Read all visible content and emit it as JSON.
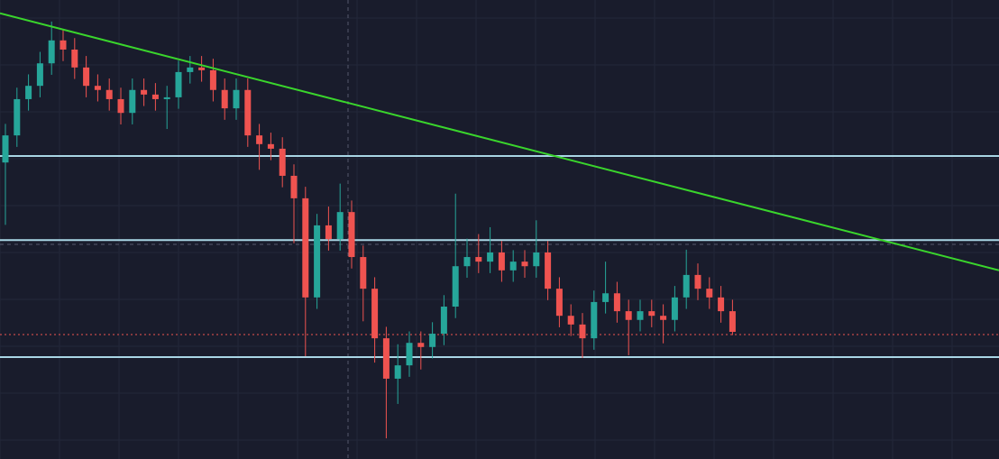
{
  "chart_data": {
    "type": "candlestick",
    "open": [
      64.6,
      70.5,
      78.4,
      81.3,
      86.2,
      91.2,
      89.2,
      85.3,
      81.3,
      80.4,
      78.4,
      75.4,
      80.4,
      79.4,
      78.4,
      78.8,
      84.3,
      85.3,
      84.7,
      80.4,
      76.4,
      80.4,
      70.5,
      68.6,
      67.6,
      61.7,
      56.8,
      35.2,
      50.9,
      47.9,
      53.8,
      44.0,
      37.1,
      26.3,
      17.5,
      20.4,
      25.3,
      24.4,
      27.3,
      33.2,
      42.0,
      44.0,
      43.0,
      45.0,
      41.1,
      43.0,
      42.0,
      45.0,
      37.1,
      31.2,
      29.3,
      26.3,
      34.2,
      36.1,
      32.2,
      30.3,
      32.2,
      31.2,
      30.3,
      35.2,
      40.1,
      37.1,
      35.2,
      32.2
    ],
    "high": [
      73.0,
      80.9,
      83.8,
      88.7,
      95.3,
      93.7,
      91.7,
      87.8,
      83.8,
      82.9,
      80.9,
      82.9,
      82.9,
      81.9,
      81.3,
      86.8,
      87.8,
      87.8,
      87.2,
      82.9,
      82.9,
      82.9,
      73.0,
      71.1,
      70.1,
      64.2,
      59.3,
      53.4,
      55.0,
      60.0,
      56.3,
      46.5,
      39.6,
      28.8,
      25.0,
      27.8,
      27.8,
      29.8,
      35.7,
      57.8,
      48.0,
      49.0,
      50.5,
      47.5,
      45.5,
      45.5,
      52.0,
      47.5,
      39.6,
      33.7,
      31.8,
      36.7,
      43.0,
      38.6,
      34.7,
      34.7,
      34.7,
      33.7,
      37.7,
      45.6,
      42.6,
      39.6,
      37.7,
      34.7
    ],
    "low": [
      51.0,
      68.0,
      75.9,
      78.8,
      83.7,
      86.7,
      82.8,
      78.8,
      77.9,
      75.9,
      72.9,
      72.9,
      76.9,
      75.9,
      71.9,
      76.3,
      81.8,
      82.2,
      77.9,
      73.9,
      73.9,
      68.0,
      63.0,
      65.1,
      59.2,
      47.0,
      22.4,
      32.7,
      45.4,
      45.4,
      41.5,
      30.0,
      21.0,
      4.5,
      12.0,
      17.9,
      19.5,
      21.9,
      24.8,
      30.7,
      39.5,
      40.5,
      40.5,
      38.6,
      38.6,
      39.5,
      39.5,
      34.6,
      28.7,
      26.8,
      22.0,
      23.8,
      31.7,
      29.7,
      22.6,
      27.8,
      28.7,
      25.2,
      27.8,
      32.7,
      34.6,
      32.7,
      29.7,
      27.0
    ],
    "close": [
      70.5,
      78.4,
      81.3,
      86.2,
      91.2,
      89.2,
      85.3,
      81.3,
      80.4,
      78.4,
      75.4,
      80.4,
      79.4,
      78.4,
      78.8,
      84.3,
      85.3,
      84.7,
      80.4,
      76.4,
      80.4,
      70.5,
      68.6,
      67.6,
      61.7,
      56.8,
      35.2,
      50.9,
      47.9,
      53.8,
      44.0,
      37.1,
      26.3,
      17.5,
      20.4,
      25.3,
      24.4,
      27.3,
      33.2,
      42.0,
      44.0,
      43.0,
      45.0,
      41.1,
      43.0,
      42.0,
      45.0,
      37.1,
      31.2,
      29.3,
      26.3,
      34.2,
      36.1,
      32.2,
      30.3,
      32.2,
      31.2,
      30.3,
      35.2,
      40.1,
      37.1,
      35.2,
      32.2,
      27.7
    ],
    "up_color": "#26a69a",
    "down_color": "#ef5350",
    "ylim": [
      0,
      100
    ],
    "hlines": [
      {
        "value": 66.0,
        "color": "#a9d6e5"
      },
      {
        "value": 47.7,
        "color": "#a9d6e5"
      },
      {
        "value": 22.2,
        "color": "#a9d6e5"
      }
    ],
    "price_line": {
      "value": 27.1,
      "color": "#ef5350"
    },
    "trendline": {
      "values": [
        97.1,
        41.1
      ],
      "color": "#3ad52c"
    }
  }
}
